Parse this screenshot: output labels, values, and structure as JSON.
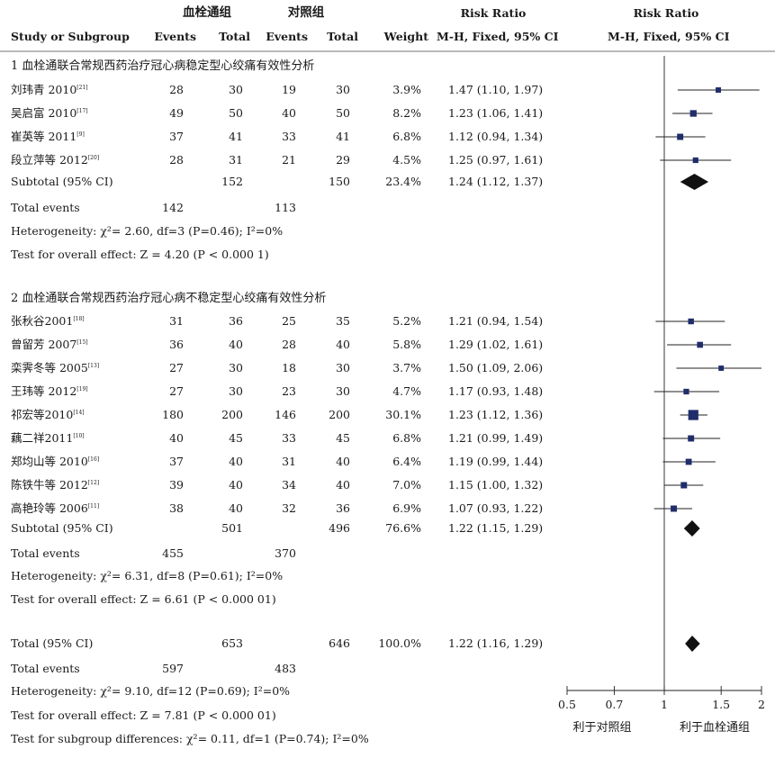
{
  "header": {
    "group_treat": "血栓通组",
    "group_ctrl": "对照组",
    "rr_col": "Risk Ratio",
    "rr_plot": "Risk Ratio",
    "study_col": "Study or Subgroup",
    "events_treat": "Events",
    "total_treat": "Total",
    "events_ctrl": "Events",
    "total_ctrl": "Total",
    "weight": "Weight",
    "method_col": "M-H, Fixed, 95% CI",
    "method_plot": "M-H, Fixed, 95% CI"
  },
  "subgroups": [
    {
      "title": "1  血栓通联合常规西药治疗冠心病稳定型心绞痛有效性分析",
      "studies": [
        {
          "name": "刘玮青 2010",
          "ref": "[21]",
          "e1": "28",
          "n1": "30",
          "e2": "19",
          "n2": "30",
          "weight": "3.9%",
          "ci_text": "1.47 (1.10, 1.97)"
        },
        {
          "name": "吴启富 2010",
          "ref": "[17]",
          "e1": "49",
          "n1": "50",
          "e2": "40",
          "n2": "50",
          "weight": "8.2%",
          "ci_text": "1.23 (1.06, 1.41)"
        },
        {
          "name": "崔英等 2011",
          "ref": "[9]",
          "e1": "37",
          "n1": "41",
          "e2": "33",
          "n2": "41",
          "weight": "6.8%",
          "ci_text": "1.12 (0.94, 1.34)"
        },
        {
          "name": "段立萍等 2012",
          "ref": "[20]",
          "e1": "28",
          "n1": "31",
          "e2": "21",
          "n2": "29",
          "weight": "4.5%",
          "ci_text": "1.25 (0.97, 1.61)"
        }
      ],
      "subtotal": {
        "label": "Subtotal (95% CI)",
        "n1": "152",
        "n2": "150",
        "weight": "23.4%",
        "ci_text": "1.24 (1.12, 1.37)"
      },
      "total_events": {
        "label": "Total events",
        "e1": "142",
        "e2": "113"
      },
      "heterogeneity": {
        "label": "Heterogeneity: ",
        "text": "χ²= 2.60, df=3 (P=0.46); I²=0%"
      },
      "overall": {
        "label": "Test for overall effect: ",
        "text": "Z = 4.20 (P < 0.000 1)"
      }
    },
    {
      "title": "2  血栓通联合常规西药治疗冠心病不稳定型心绞痛有效性分析",
      "studies": [
        {
          "name": "张秋谷2001",
          "ref": "[18]",
          "e1": "31",
          "n1": "36",
          "e2": "25",
          "n2": "35",
          "weight": "5.2%",
          "ci_text": "1.21 (0.94, 1.54)"
        },
        {
          "name": "曾留芳 2007",
          "ref": "[15]",
          "e1": "36",
          "n1": "40",
          "e2": "28",
          "n2": "40",
          "weight": "5.8%",
          "ci_text": "1.29 (1.02, 1.61)"
        },
        {
          "name": "栾霁冬等 2005",
          "ref": "[13]",
          "e1": "27",
          "n1": "30",
          "e2": "18",
          "n2": "30",
          "weight": "3.7%",
          "ci_text": "1.50 (1.09, 2.06)"
        },
        {
          "name": "王玮等 2012",
          "ref": "[19]",
          "e1": "27",
          "n1": "30",
          "e2": "23",
          "n2": "30",
          "weight": "4.7%",
          "ci_text": "1.17 (0.93, 1.48)"
        },
        {
          "name": "祁宏等2010",
          "ref": "[14]",
          "e1": "180",
          "n1": "200",
          "e2": "146",
          "n2": "200",
          "weight": "30.1%",
          "ci_text": "1.23 (1.12, 1.36)"
        },
        {
          "name": "藕二祥2011",
          "ref": "[10]",
          "e1": "40",
          "n1": "45",
          "e2": "33",
          "n2": "45",
          "weight": "6.8%",
          "ci_text": "1.21 (0.99, 1.49)"
        },
        {
          "name": "郑均山等 2010",
          "ref": "[16]",
          "e1": "37",
          "n1": "40",
          "e2": "31",
          "n2": "40",
          "weight": "6.4%",
          "ci_text": "1.19 (0.99, 1.44)"
        },
        {
          "name": "陈铁牛等 2012",
          "ref": "[12]",
          "e1": "39",
          "n1": "40",
          "e2": "34",
          "n2": "40",
          "weight": "7.0%",
          "ci_text": "1.15 (1.00, 1.32)"
        },
        {
          "name": "高艳玲等 2006",
          "ref": "[11]",
          "e1": "38",
          "n1": "40",
          "e2": "32",
          "n2": "36",
          "weight": "6.9%",
          "ci_text": "1.07 (0.93, 1.22)"
        }
      ],
      "subtotal": {
        "label": "Subtotal (95% CI)",
        "n1": "501",
        "n2": "496",
        "weight": "76.6%",
        "ci_text": "1.22 (1.15, 1.29)"
      },
      "total_events": {
        "label": "Total events",
        "e1": "455",
        "e2": "370"
      },
      "heterogeneity": {
        "label": "Heterogeneity: ",
        "text": "χ²= 6.31, df=8 (P=0.61); I²=0%"
      },
      "overall": {
        "label": "Test for overall effect: ",
        "text": "Z = 6.61 (P < 0.000 01)"
      }
    }
  ],
  "total": {
    "label": "Total (95% CI)",
    "n1": "653",
    "n2": "646",
    "weight": "100.0%",
    "ci_text": "1.22 (1.16, 1.29)"
  },
  "total_events": {
    "label": "Total events",
    "e1": "597",
    "e2": "483"
  },
  "heterogeneity": {
    "label": "Heterogeneity: ",
    "text": "χ²= 9.10, df=12 (P=0.69); I²=0%"
  },
  "overall": {
    "label": "Test for overall effect: ",
    "text": "Z = 7.81 (P < 0.000 01)"
  },
  "subgroup_diff": {
    "label": "Test for subgroup differences: ",
    "text": "χ²= 0.11, df=1 (P=0.74); I²=0%"
  },
  "axis": {
    "ticks": [
      "0.5",
      "0.7",
      "1",
      "1.5",
      "2"
    ],
    "favours_left": "利于对照组",
    "favours_right": "利于血栓通组"
  },
  "colors": {
    "marker": "#1f2d6b",
    "diamond": "#111111",
    "line": "#222222"
  },
  "chart_data": {
    "type": "forest",
    "scale": "log",
    "xlim": [
      0.5,
      2
    ],
    "null_line": 1,
    "xticks": [
      0.5,
      0.7,
      1,
      1.5,
      2
    ],
    "studies": [
      {
        "name": "刘玮青 2010",
        "rr": 1.47,
        "lo": 1.1,
        "hi": 1.97,
        "weight": 3.9
      },
      {
        "name": "吴启富 2010",
        "rr": 1.23,
        "lo": 1.06,
        "hi": 1.41,
        "weight": 8.2
      },
      {
        "name": "崔英等 2011",
        "rr": 1.12,
        "lo": 0.94,
        "hi": 1.34,
        "weight": 6.8
      },
      {
        "name": "段立萍等 2012",
        "rr": 1.25,
        "lo": 0.97,
        "hi": 1.61,
        "weight": 4.5
      },
      {
        "name": "张秋谷2001",
        "rr": 1.21,
        "lo": 0.94,
        "hi": 1.54,
        "weight": 5.2
      },
      {
        "name": "曾留芳 2007",
        "rr": 1.29,
        "lo": 1.02,
        "hi": 1.61,
        "weight": 5.8
      },
      {
        "name": "栾霁冬等 2005",
        "rr": 1.5,
        "lo": 1.09,
        "hi": 2.06,
        "weight": 3.7
      },
      {
        "name": "王玮等 2012",
        "rr": 1.17,
        "lo": 0.93,
        "hi": 1.48,
        "weight": 4.7
      },
      {
        "name": "祁宏等2010",
        "rr": 1.23,
        "lo": 1.12,
        "hi": 1.36,
        "weight": 30.1
      },
      {
        "name": "藕二祥2011",
        "rr": 1.21,
        "lo": 0.99,
        "hi": 1.49,
        "weight": 6.8
      },
      {
        "name": "郑均山等 2010",
        "rr": 1.19,
        "lo": 0.99,
        "hi": 1.44,
        "weight": 6.4
      },
      {
        "name": "陈铁牛等 2012",
        "rr": 1.15,
        "lo": 1.0,
        "hi": 1.32,
        "weight": 7.0
      },
      {
        "name": "高艳玲等 2006",
        "rr": 1.07,
        "lo": 0.93,
        "hi": 1.22,
        "weight": 6.9
      }
    ],
    "summaries": [
      {
        "name": "Subtotal 1",
        "rr": 1.24,
        "lo": 1.12,
        "hi": 1.37
      },
      {
        "name": "Subtotal 2",
        "rr": 1.22,
        "lo": 1.15,
        "hi": 1.29
      },
      {
        "name": "Total",
        "rr": 1.22,
        "lo": 1.16,
        "hi": 1.29
      }
    ]
  }
}
